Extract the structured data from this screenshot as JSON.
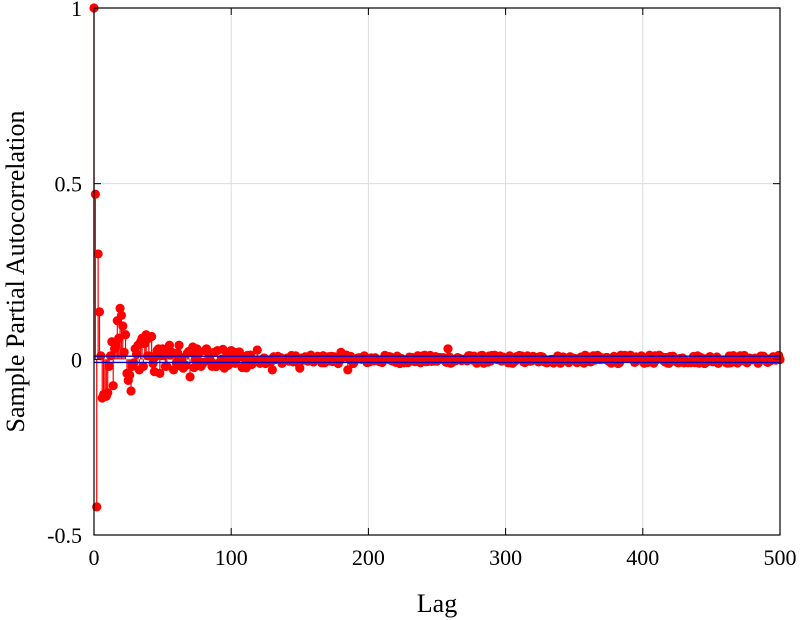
{
  "chart_data": {
    "type": "stem",
    "xlabel": "Lag",
    "ylabel": "Sample Partial Autocorrelation",
    "xlim": [
      0,
      500
    ],
    "ylim": [
      -0.5,
      1
    ],
    "x_ticks": [
      "0",
      "100",
      "200",
      "300",
      "400",
      "500"
    ],
    "y_ticks": [
      "-0.5",
      "0",
      "0.5",
      "1"
    ],
    "grid": true,
    "confidence_bounds": [
      -0.0089,
      0.0089
    ],
    "series_color": "#ff0000",
    "bound_color": "#0000cc",
    "max_lag": 500,
    "initial_lags": [
      {
        "lag": 0,
        "value": 1.0
      },
      {
        "lag": 1,
        "value": 0.47
      },
      {
        "lag": 2,
        "value": -0.42
      },
      {
        "lag": 3,
        "value": 0.3
      },
      {
        "lag": 4,
        "value": 0.135
      },
      {
        "lag": 5,
        "value": 0.01
      },
      {
        "lag": 6,
        "value": -0.11
      },
      {
        "lag": 7,
        "value": -0.1
      },
      {
        "lag": 8,
        "value": -0.1
      },
      {
        "lag": 9,
        "value": -0.105
      },
      {
        "lag": 10,
        "value": -0.095
      },
      {
        "lag": 11,
        "value": -0.02
      },
      {
        "lag": 12,
        "value": 0.01
      },
      {
        "lag": 13,
        "value": 0.05
      },
      {
        "lag": 14,
        "value": -0.075
      },
      {
        "lag": 15,
        "value": 0.03
      },
      {
        "lag": 16,
        "value": 0.04
      },
      {
        "lag": 17,
        "value": 0.11
      },
      {
        "lag": 18,
        "value": 0.06
      },
      {
        "lag": 19,
        "value": 0.145
      },
      {
        "lag": 20,
        "value": 0.125
      },
      {
        "lag": 21,
        "value": 0.095
      },
      {
        "lag": 22,
        "value": 0.02
      },
      {
        "lag": 23,
        "value": 0.07
      },
      {
        "lag": 24,
        "value": -0.04
      },
      {
        "lag": 25,
        "value": -0.06
      },
      {
        "lag": 26,
        "value": -0.045
      },
      {
        "lag": 27,
        "value": -0.09
      },
      {
        "lag": 28,
        "value": -0.02
      },
      {
        "lag": 29,
        "value": -0.01
      },
      {
        "lag": 30,
        "value": 0.03
      },
      {
        "lag": 31,
        "value": 0.015
      },
      {
        "lag": 32,
        "value": 0.04
      },
      {
        "lag": 33,
        "value": -0.03
      },
      {
        "lag": 34,
        "value": 0.05
      },
      {
        "lag": 35,
        "value": 0.06
      },
      {
        "lag": 36,
        "value": -0.02
      },
      {
        "lag": 37,
        "value": 0.045
      },
      {
        "lag": 38,
        "value": 0.07
      },
      {
        "lag": 39,
        "value": 0.01
      },
      {
        "lag": 40,
        "value": 0.06
      },
      {
        "lag": 42,
        "value": 0.065
      },
      {
        "lag": 44,
        "value": -0.035
      },
      {
        "lag": 46,
        "value": 0.025
      },
      {
        "lag": 48,
        "value": -0.04
      },
      {
        "lag": 50,
        "value": 0.03
      },
      {
        "lag": 52,
        "value": -0.02
      },
      {
        "lag": 55,
        "value": 0.04
      },
      {
        "lag": 58,
        "value": -0.03
      },
      {
        "lag": 62,
        "value": 0.04
      },
      {
        "lag": 65,
        "value": -0.025
      },
      {
        "lag": 70,
        "value": -0.05
      },
      {
        "lag": 72,
        "value": 0.035
      },
      {
        "lag": 75,
        "value": 0.03
      },
      {
        "lag": 78,
        "value": -0.02
      },
      {
        "lag": 82,
        "value": 0.03
      },
      {
        "lag": 86,
        "value": -0.02
      },
      {
        "lag": 90,
        "value": 0.025
      },
      {
        "lag": 95,
        "value": -0.025
      },
      {
        "lag": 100,
        "value": 0.025
      },
      {
        "lag": 105,
        "value": 0.02
      },
      {
        "lag": 110,
        "value": -0.02
      },
      {
        "lag": 130,
        "value": -0.03
      },
      {
        "lag": 150,
        "value": -0.025
      },
      {
        "lag": 180,
        "value": 0.02
      },
      {
        "lag": 185,
        "value": -0.03
      },
      {
        "lag": 258,
        "value": 0.03
      }
    ],
    "noise_amplitude_early": 0.03,
    "noise_amplitude_late": 0.012
  }
}
